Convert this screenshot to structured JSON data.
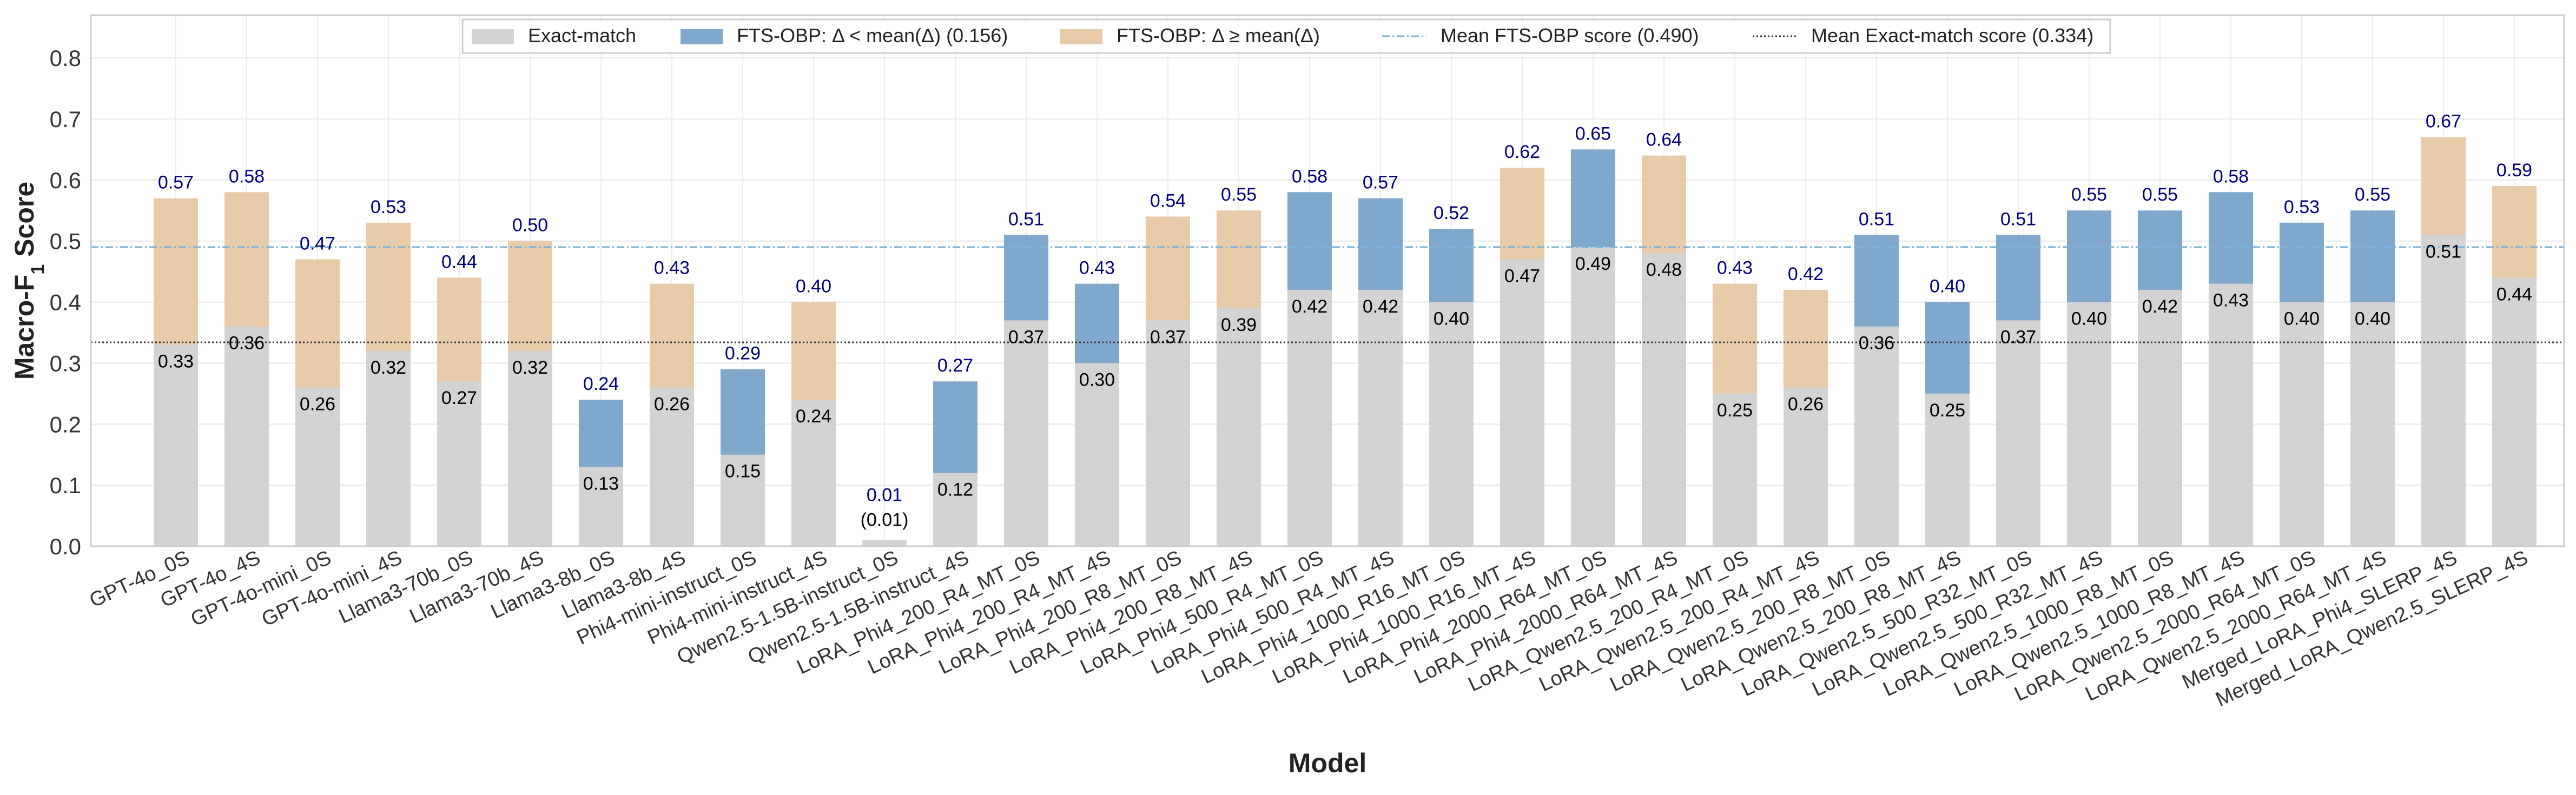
{
  "chart_data": {
    "type": "bar",
    "stacked": true,
    "xlabel": "Model",
    "ylabel": "Macro-F",
    "ylabel_subscript": "1",
    "ylabel_suffix": " Score",
    "ylim": [
      0,
      0.87
    ],
    "yticks": [
      "0.0",
      "0.1",
      "0.2",
      "0.3",
      "0.4",
      "0.5",
      "0.6",
      "0.7",
      "0.8"
    ],
    "grid": true,
    "legend_position": "top-center",
    "colors": {
      "exact": "#d3d3d3",
      "fts_low": "#7fa8cc",
      "fts_high": "#e8ccaa",
      "mean_fts_line": "#7fb3d8",
      "mean_exact_line": "#333333",
      "total_label": "#000080",
      "exact_label": "#000000"
    },
    "legend": {
      "exact": "Exact-match",
      "fts_low": "FTS-OBP: Δ < mean(Δ) (0.156)",
      "fts_high": "FTS-OBP: Δ ≥ mean(Δ)",
      "mean_fts": "Mean FTS-OBP score (0.490)",
      "mean_exact": "Mean Exact-match score (0.334)"
    },
    "mean_fts": 0.49,
    "mean_exact": 0.334,
    "categories": [
      "GPT-4o_0S",
      "GPT-4o_4S",
      "GPT-4o-mini_0S",
      "GPT-4o-mini_4S",
      "Llama3-70b_0S",
      "Llama3-70b_4S",
      "Llama3-8b_0S",
      "Llama3-8b_4S",
      "Phi4-mini-instruct_0S",
      "Phi4-mini-instruct_4S",
      "Qwen2.5-1.5B-instruct_0S",
      "Qwen2.5-1.5B-instruct_4S",
      "LoRA_Phi4_200_R4_MT_0S",
      "LoRA_Phi4_200_R4_MT_4S",
      "LoRA_Phi4_200_R8_MT_0S",
      "LoRA_Phi4_200_R8_MT_4S",
      "LoRA_Phi4_500_R4_MT_0S",
      "LoRA_Phi4_500_R4_MT_4S",
      "LoRA_Phi4_1000_R16_MT_0S",
      "LoRA_Phi4_1000_R16_MT_4S",
      "LoRA_Phi4_2000_R64_MT_0S",
      "LoRA_Phi4_2000_R64_MT_4S",
      "LoRA_Qwen2.5_200_R4_MT_0S",
      "LoRA_Qwen2.5_200_R4_MT_4S",
      "LoRA_Qwen2.5_200_R8_MT_0S",
      "LoRA_Qwen2.5_200_R8_MT_4S",
      "LoRA_Qwen2.5_500_R32_MT_0S",
      "LoRA_Qwen2.5_500_R32_MT_4S",
      "LoRA_Qwen2.5_1000_R8_MT_0S",
      "LoRA_Qwen2.5_1000_R8_MT_4S",
      "LoRA_Qwen2.5_2000_R64_MT_0S",
      "LoRA_Qwen2.5_2000_R64_MT_4S",
      "Merged_LoRA_Phi4_SLERP_4S",
      "Merged_LoRA_Qwen2.5_SLERP_4S"
    ],
    "exact_match": [
      0.33,
      0.36,
      0.26,
      0.32,
      0.27,
      0.32,
      0.13,
      0.26,
      0.15,
      0.24,
      0.01,
      0.12,
      0.37,
      0.3,
      0.37,
      0.39,
      0.42,
      0.42,
      0.4,
      0.47,
      0.49,
      0.48,
      0.25,
      0.26,
      0.36,
      0.25,
      0.37,
      0.4,
      0.42,
      0.43,
      0.4,
      0.4,
      0.51,
      0.44
    ],
    "fts_obp": [
      0.57,
      0.58,
      0.47,
      0.53,
      0.44,
      0.5,
      0.24,
      0.43,
      0.29,
      0.4,
      0.01,
      0.27,
      0.51,
      0.43,
      0.54,
      0.55,
      0.58,
      0.57,
      0.52,
      0.62,
      0.65,
      0.64,
      0.43,
      0.42,
      0.51,
      0.4,
      0.51,
      0.55,
      0.55,
      0.58,
      0.53,
      0.55,
      0.67,
      0.59
    ],
    "fts_group": [
      "high",
      "high",
      "high",
      "high",
      "high",
      "high",
      "low",
      "high",
      "low",
      "high",
      "low",
      "low",
      "low",
      "low",
      "high",
      "high",
      "low",
      "low",
      "low",
      "high",
      "low",
      "high",
      "high",
      "high",
      "low",
      "low",
      "low",
      "low",
      "low",
      "low",
      "low",
      "low",
      "high",
      "high"
    ],
    "exact_labels": [
      "0.33",
      "0.36",
      "0.26",
      "0.32",
      "0.27",
      "0.32",
      "0.13",
      "0.26",
      "0.15",
      "0.24",
      "(0.01)",
      "0.12",
      "0.37",
      "0.30",
      "0.37",
      "0.39",
      "0.42",
      "0.42",
      "0.40",
      "0.47",
      "0.49",
      "0.48",
      "0.25",
      "0.26",
      "0.36",
      "0.25",
      "0.37",
      "0.40",
      "0.42",
      "0.43",
      "0.40",
      "0.40",
      "0.51",
      "0.44"
    ],
    "fts_labels": [
      "0.57",
      "0.58",
      "0.47",
      "0.53",
      "0.44",
      "0.50",
      "0.24",
      "0.43",
      "0.29",
      "0.40",
      "0.01",
      "0.27",
      "0.51",
      "0.43",
      "0.54",
      "0.55",
      "0.58",
      "0.57",
      "0.52",
      "0.62",
      "0.65",
      "0.64",
      "0.43",
      "0.42",
      "0.51",
      "0.40",
      "0.51",
      "0.55",
      "0.55",
      "0.58",
      "0.53",
      "0.55",
      "0.67",
      "0.59"
    ]
  }
}
